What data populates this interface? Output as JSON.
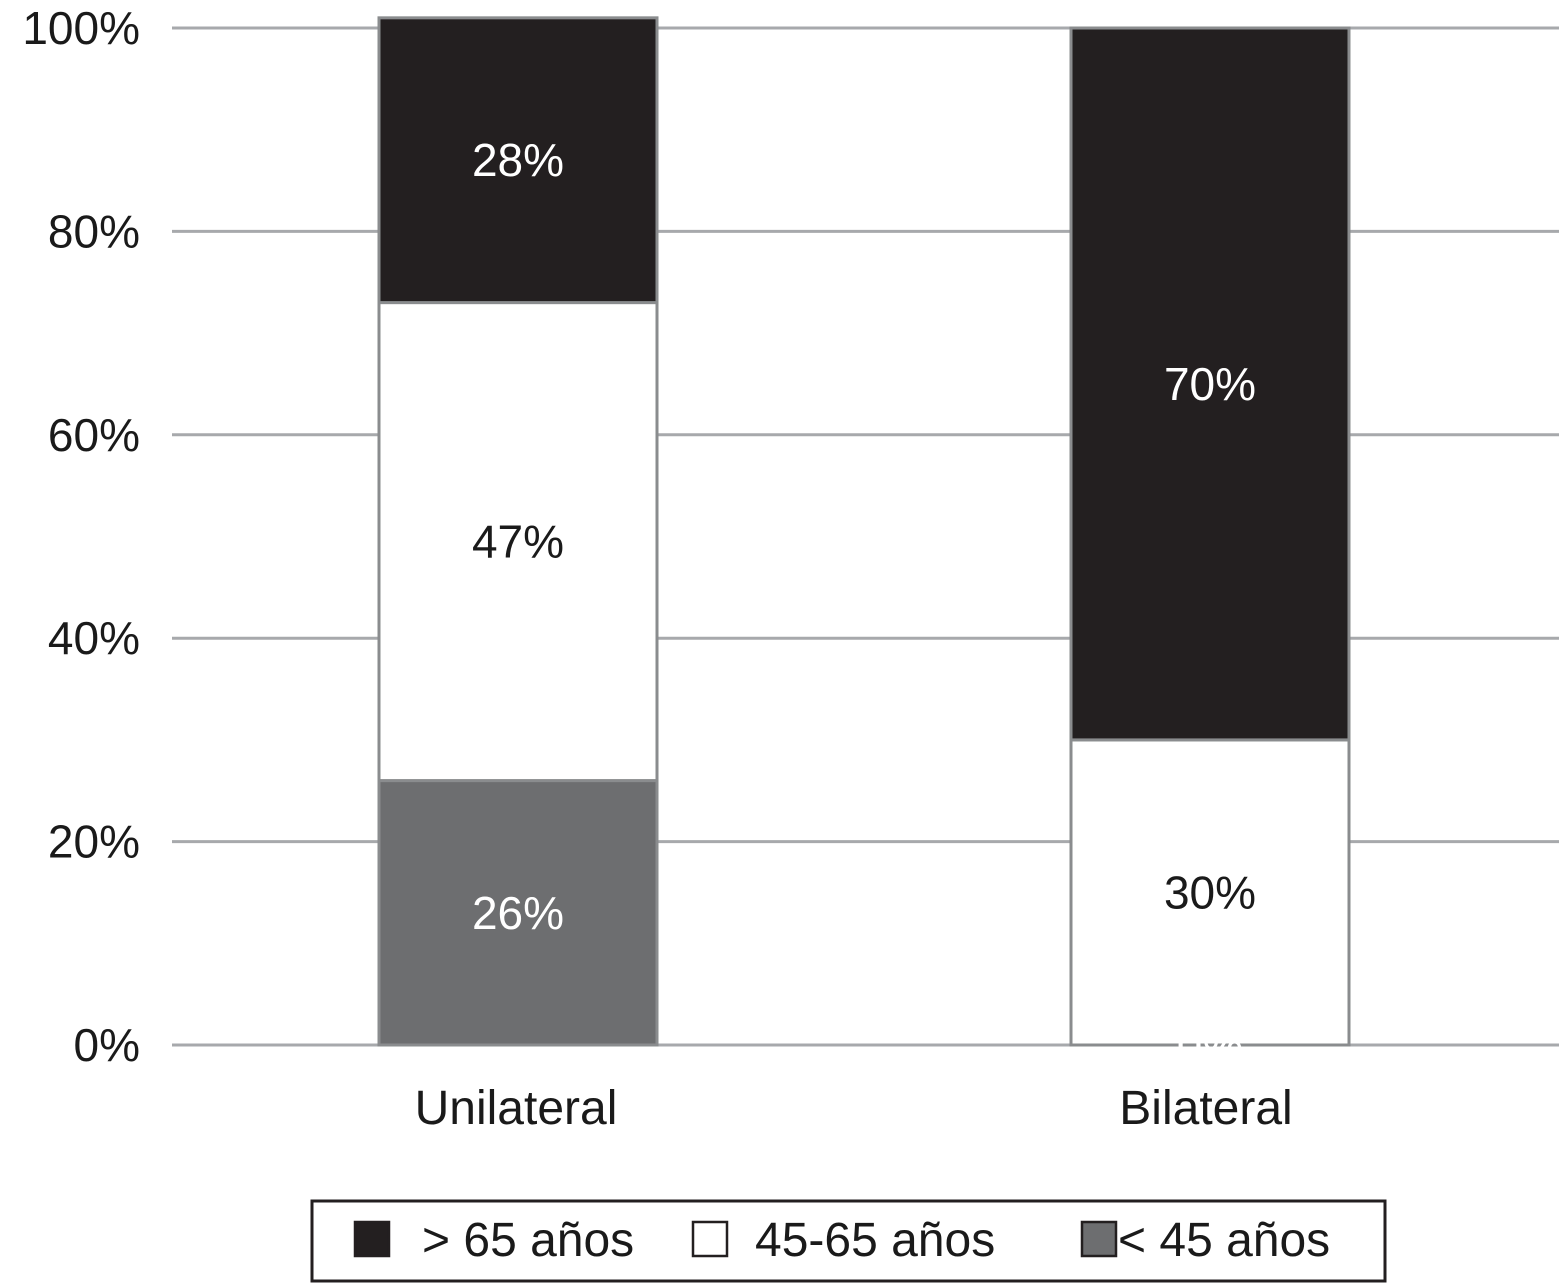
{
  "chart_data": {
    "type": "bar",
    "stacked": true,
    "categories": [
      "Unilateral",
      "Bilateral"
    ],
    "series": [
      {
        "name": "< 45 años",
        "values": [
          26,
          0
        ],
        "color": "#6d6e70",
        "label_color": "#ffffff"
      },
      {
        "name": "45-65 años",
        "values": [
          47,
          30
        ],
        "color": "#ffffff",
        "label_color": "#1a1a1a"
      },
      {
        "name": "> 65 años",
        "values": [
          28,
          70
        ],
        "color": "#231f20",
        "label_color": "#ffffff"
      }
    ],
    "data_labels": [
      [
        "26%",
        "0%"
      ],
      [
        "47%",
        "30%"
      ],
      [
        "28%",
        "70%"
      ]
    ],
    "y_ticks": [
      "0%",
      "20%",
      "40%",
      "60%",
      "80%",
      "100%"
    ],
    "ylim": [
      0,
      100
    ],
    "grid": true,
    "gridline_color": "#a7a9ac",
    "legend": {
      "placement": "bottom",
      "order": [
        "> 65 años",
        "45-65 años",
        "< 45 años"
      ]
    }
  }
}
